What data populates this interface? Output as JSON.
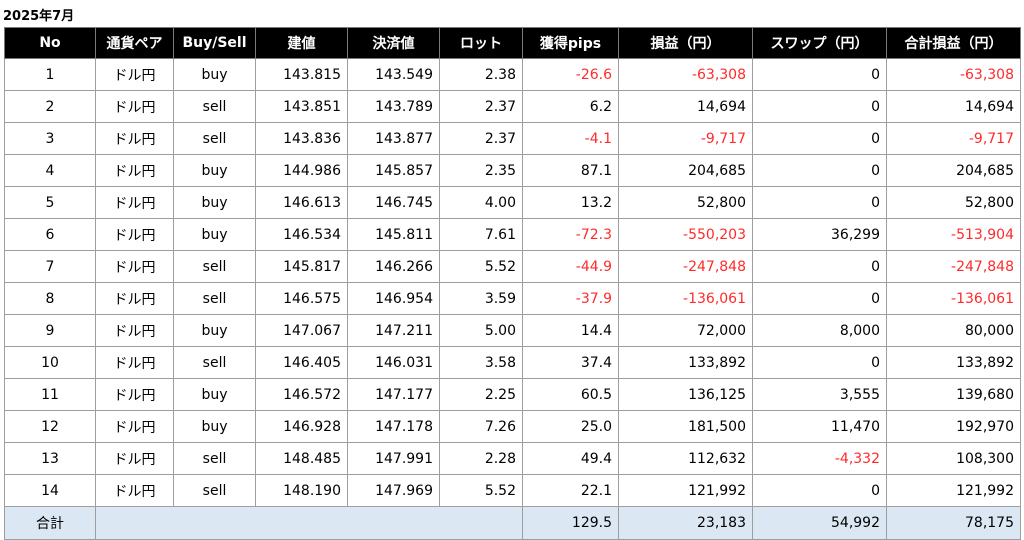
{
  "title": "2025年7月",
  "headers": [
    "No",
    "通貨ペア",
    "Buy/Sell",
    "建値",
    "決済値",
    "ロット",
    "獲得pips",
    "損益（円）",
    "スワップ（円）",
    "合計損益（円）"
  ],
  "rows": [
    [
      "1",
      "ドル円",
      "buy",
      "143.815",
      "143.549",
      "2.38",
      "-26.6",
      "-63,308",
      "0",
      "-63,308"
    ],
    [
      "2",
      "ドル円",
      "sell",
      "143.851",
      "143.789",
      "2.37",
      "6.2",
      "14,694",
      "0",
      "14,694"
    ],
    [
      "3",
      "ドル円",
      "sell",
      "143.836",
      "143.877",
      "2.37",
      "-4.1",
      "-9,717",
      "0",
      "-9,717"
    ],
    [
      "4",
      "ドル円",
      "buy",
      "144.986",
      "145.857",
      "2.35",
      "87.1",
      "204,685",
      "0",
      "204,685"
    ],
    [
      "5",
      "ドル円",
      "buy",
      "146.613",
      "146.745",
      "4.00",
      "13.2",
      "52,800",
      "0",
      "52,800"
    ],
    [
      "6",
      "ドル円",
      "buy",
      "146.534",
      "145.811",
      "7.61",
      "-72.3",
      "-550,203",
      "36,299",
      "-513,904"
    ],
    [
      "7",
      "ドル円",
      "sell",
      "145.817",
      "146.266",
      "5.52",
      "-44.9",
      "-247,848",
      "0",
      "-247,848"
    ],
    [
      "8",
      "ドル円",
      "sell",
      "146.575",
      "146.954",
      "3.59",
      "-37.9",
      "-136,061",
      "0",
      "-136,061"
    ],
    [
      "9",
      "ドル円",
      "buy",
      "147.067",
      "147.211",
      "5.00",
      "14.4",
      "72,000",
      "8,000",
      "80,000"
    ],
    [
      "10",
      "ドル円",
      "sell",
      "146.405",
      "146.031",
      "3.58",
      "37.4",
      "133,892",
      "0",
      "133,892"
    ],
    [
      "11",
      "ドル円",
      "buy",
      "146.572",
      "147.177",
      "2.25",
      "60.5",
      "136,125",
      "3,555",
      "139,680"
    ],
    [
      "12",
      "ドル円",
      "buy",
      "146.928",
      "147.178",
      "7.26",
      "25.0",
      "181,500",
      "11,470",
      "192,970"
    ],
    [
      "13",
      "ドル円",
      "sell",
      "148.485",
      "147.991",
      "2.28",
      "49.4",
      "112,632",
      "-4,332",
      "108,300"
    ],
    [
      "14",
      "ドル円",
      "sell",
      "148.190",
      "147.969",
      "5.52",
      "22.1",
      "121,992",
      "0",
      "121,992"
    ]
  ],
  "total": {
    "label": "合計",
    "pips": "129.5",
    "profit": "23,183",
    "swap": "54,992",
    "total": "78,175"
  },
  "colors": {
    "header_bg": "#000000",
    "negative": "#ff2b2b",
    "total_bg": "#dbe8f4",
    "border": "#9e9e9e"
  }
}
